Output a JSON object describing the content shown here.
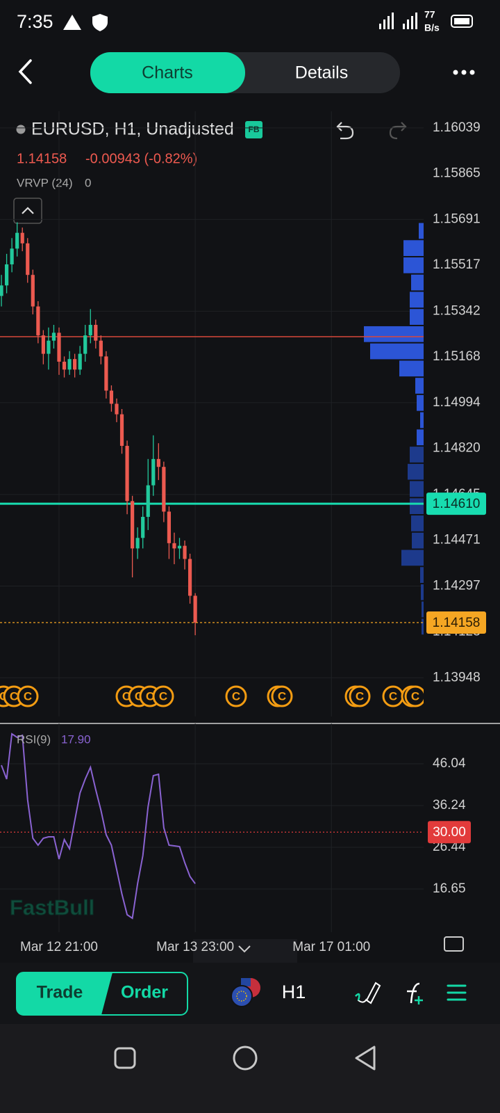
{
  "status_bar": {
    "time": "7:35",
    "speed": "77",
    "speed_unit": "B/s"
  },
  "top_bar": {
    "tabs": [
      "Charts",
      "Details"
    ]
  },
  "chart_data": [
    {
      "type": "candlestick",
      "title": "EURUSD, H1, Unadjusted",
      "badge": "FB",
      "price": "1.14158",
      "change": "-0.00943 (-0.82%)",
      "x": [
        0,
        1,
        2,
        3,
        4,
        5,
        6,
        7,
        8,
        9,
        10,
        11,
        12,
        13,
        14,
        15,
        16,
        17,
        18,
        19,
        20,
        21,
        22,
        23,
        24,
        25,
        26,
        27,
        28,
        29,
        30,
        31,
        32,
        33,
        34,
        35,
        36,
        37
      ],
      "open": [
        1.154,
        1.1544,
        1.1552,
        1.1558,
        1.1564,
        1.156,
        1.1548,
        1.1536,
        1.1525,
        1.1518,
        1.1523,
        1.1526,
        1.1515,
        1.1512,
        1.1516,
        1.1512,
        1.1518,
        1.1525,
        1.1529,
        1.1523,
        1.1517,
        1.1504,
        1.1499,
        1.1495,
        1.1483,
        1.1462,
        1.1444,
        1.1448,
        1.1456,
        1.1468,
        1.1478,
        1.1475,
        1.1458,
        1.1446,
        1.1444,
        1.1445,
        1.144,
        1.1426
      ],
      "high": [
        1.1548,
        1.1556,
        1.1562,
        1.1568,
        1.1566,
        1.1562,
        1.155,
        1.1538,
        1.1527,
        1.1528,
        1.1529,
        1.1528,
        1.1517,
        1.1519,
        1.1518,
        1.1521,
        1.1529,
        1.1535,
        1.1531,
        1.1525,
        1.1519,
        1.1506,
        1.1501,
        1.1497,
        1.1485,
        1.1464,
        1.1452,
        1.146,
        1.1478,
        1.1487,
        1.1484,
        1.1477,
        1.146,
        1.145,
        1.1448,
        1.1447,
        1.1442,
        1.1427
      ],
      "low": [
        1.1536,
        1.1541,
        1.1549,
        1.1555,
        1.1557,
        1.1545,
        1.1533,
        1.1522,
        1.1514,
        1.1512,
        1.152,
        1.151,
        1.1509,
        1.151,
        1.1509,
        1.151,
        1.1515,
        1.1522,
        1.152,
        1.1514,
        1.1501,
        1.1496,
        1.1492,
        1.148,
        1.1457,
        1.1433,
        1.144,
        1.1444,
        1.1451,
        1.1464,
        1.147,
        1.1454,
        1.144,
        1.1438,
        1.144,
        1.1436,
        1.1423,
        1.1411
      ],
      "close": [
        1.1544,
        1.1552,
        1.1558,
        1.1564,
        1.156,
        1.1548,
        1.1536,
        1.1525,
        1.1518,
        1.1523,
        1.1526,
        1.1515,
        1.1512,
        1.1516,
        1.1512,
        1.1518,
        1.1525,
        1.1529,
        1.1523,
        1.1517,
        1.1504,
        1.1499,
        1.1495,
        1.1483,
        1.1462,
        1.1444,
        1.1448,
        1.1456,
        1.1468,
        1.1478,
        1.1475,
        1.1458,
        1.1446,
        1.1444,
        1.1445,
        1.144,
        1.1426,
        1.14158
      ],
      "up_color": "#22c99c",
      "down_color": "#ec5a50",
      "xlim": [
        -0.27,
        80.6
      ],
      "ylim": [
        1.13801,
        1.16102
      ],
      "yticks": [
        1.16039,
        1.15865,
        1.15691,
        1.15517,
        1.15342,
        1.15168,
        1.14994,
        {
          "value": 1.1482,
          "label": "1.14820"
        },
        1.14645,
        1.14471,
        1.14297,
        1.14123,
        1.13948
      ],
      "grid": true,
      "price_lines": [
        {
          "value": 1.15245,
          "color": "#d8473b"
        },
        {
          "value": 1.1461,
          "label": "1.14610",
          "color": "#18dcb0"
        }
      ],
      "last_price": {
        "value": 1.14158,
        "label": "1.14158",
        "color": "#f5a623"
      },
      "volume_profile": {
        "name": "VRVP (24)",
        "setting": "0",
        "values": [
          7,
          29,
          29,
          18,
          20,
          20,
          86,
          77,
          35,
          12,
          10,
          5,
          10,
          20,
          23,
          20,
          20,
          18,
          17,
          32,
          5,
          4,
          3,
          3
        ],
        "colors": [
          "#2c55d6",
          "#2c55d6",
          "#2c55d6",
          "#2c55d6",
          "#2c55d6",
          "#2c55d6",
          "#2c55d6",
          "#2c55d6",
          "#2c55d6",
          "#2c55d6",
          "#2c55d6",
          "#2c55d6",
          "#2c55d6",
          "#1d3a8c",
          "#1d3a8c",
          "#1d3a8c",
          "#1d3a8c",
          "#1d3a8c",
          "#1d3a8c",
          "#1d3a8c",
          "#1d3a8c",
          "#1d3a8c",
          "#1d3a8c",
          "#1d3a8c"
        ]
      },
      "event_label": "C"
    },
    {
      "type": "line",
      "title": "RSI(9)",
      "current": {
        "value": 17.9,
        "label": "17.90"
      },
      "color": "#8a63d2",
      "x": [
        0,
        1,
        2,
        3,
        4,
        5,
        6,
        7,
        8,
        9,
        10,
        11,
        12,
        13,
        14,
        15,
        16,
        17,
        18,
        19,
        20,
        21,
        22,
        23,
        24,
        25,
        26,
        27,
        28,
        29,
        30,
        31,
        32,
        33,
        34,
        35,
        36,
        37
      ],
      "values": [
        45.71,
        42.45,
        53.06,
        52.25,
        52.74,
        37.55,
        28.57,
        26.93,
        28.57,
        28.89,
        28.89,
        23.67,
        28.24,
        26.12,
        32.65,
        39.18,
        42.45,
        45.22,
        40.0,
        35.1,
        29.38,
        26.93,
        21.22,
        15.5,
        10.6,
        9.79,
        17.95,
        24.48,
        35.92,
        43.26,
        43.59,
        31.02,
        26.93,
        26.77,
        26.61,
        22.85,
        19.59,
        17.9
      ],
      "xlim": [
        -0.27,
        80.6
      ],
      "ylim": [
        6.52,
        55.51
      ],
      "yticks": [
        46.04,
        36.24,
        26.44,
        16.65
      ],
      "xticks": [
        {
          "value": 11,
          "label": "Mar 12 21:00"
        },
        {
          "value": 37,
          "label": "Mar 13 23:00"
        },
        {
          "value": 63,
          "label": "Mar 17 01:00"
        }
      ],
      "levels": [
        {
          "value": 30,
          "label": "30.00",
          "color": "#e23b3b"
        }
      ],
      "watermark": "FastBull"
    }
  ],
  "bottom_bar": {
    "trade": "Trade",
    "order": "Order",
    "interval": "H1"
  }
}
